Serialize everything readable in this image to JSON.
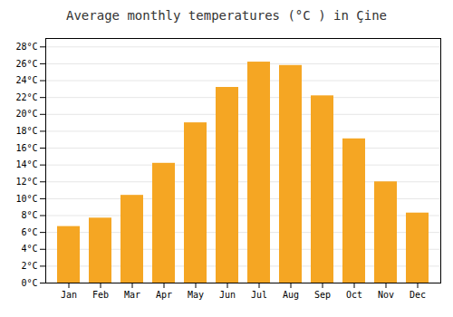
{
  "chart_data": {
    "type": "bar",
    "title": "Average monthly temperatures (°C ) in Çine",
    "categories": [
      "Jan",
      "Feb",
      "Mar",
      "Apr",
      "May",
      "Jun",
      "Jul",
      "Aug",
      "Sep",
      "Oct",
      "Nov",
      "Dec"
    ],
    "values": [
      6.7,
      7.7,
      10.4,
      14.2,
      19.0,
      23.2,
      26.2,
      25.8,
      22.2,
      17.1,
      12.0,
      8.3
    ],
    "color": "#F5A623",
    "ylim": [
      0,
      29
    ],
    "yticks": [
      {
        "value": 0,
        "label": "0°C"
      },
      {
        "value": 2,
        "label": "2°C"
      },
      {
        "value": 4,
        "label": "4°C"
      },
      {
        "value": 6,
        "label": "6°C"
      },
      {
        "value": 8,
        "label": "8°C"
      },
      {
        "value": 10,
        "label": "10°C"
      },
      {
        "value": 12,
        "label": "12°C"
      },
      {
        "value": 14,
        "label": "14°C"
      },
      {
        "value": 16,
        "label": "16°C"
      },
      {
        "value": 18,
        "label": "18°C"
      },
      {
        "value": 20,
        "label": "20°C"
      },
      {
        "value": 22,
        "label": "22°C"
      },
      {
        "value": 24,
        "label": "24°C"
      },
      {
        "value": 26,
        "label": "26°C"
      },
      {
        "value": 28,
        "label": "28°C"
      }
    ],
    "grid": true
  }
}
